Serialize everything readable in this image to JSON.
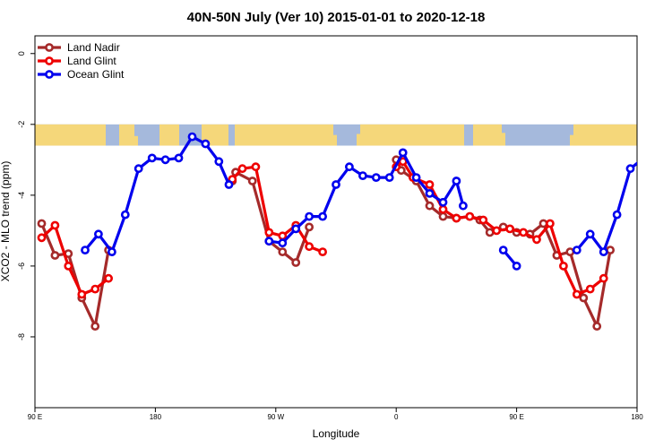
{
  "chart_data": {
    "type": "line",
    "title": "40N-50N July (Ver 10)   2015-01-01 to 2020-12-18",
    "xlabel": "Longitude",
    "ylabel": "XCO2 - MLO trend (ppm)",
    "xlim": [
      90,
      270
    ],
    "ylim": [
      0.5,
      -10
    ],
    "x_ticks": [
      {
        "value": 90,
        "label": "90 E"
      },
      {
        "value": 126,
        "label": "180"
      },
      {
        "value": 162,
        "label": "90 W"
      },
      {
        "value": 198,
        "label": "0"
      },
      {
        "value": 234,
        "label": "90 E"
      },
      {
        "value": 270,
        "label": "180"
      }
    ],
    "y_ticks": [
      {
        "value": 0,
        "label": "0"
      },
      {
        "value": -2,
        "label": "-2"
      },
      {
        "value": -4,
        "label": "-4"
      },
      {
        "value": -6,
        "label": "-6"
      },
      {
        "value": -8,
        "label": "-8"
      }
    ],
    "map_strip": {
      "y_top": -2.0,
      "y_bottom": -2.6,
      "ocean_color": "#a5b9dc",
      "land_color": "#f5d77a"
    },
    "legend_position": "top-left",
    "series": [
      {
        "name": "Land Nadir",
        "color": "#a52a2a",
        "segments": [
          [
            [
              92,
              -4.8
            ],
            [
              96,
              -5.7
            ],
            [
              100,
              -5.65
            ],
            [
              104,
              -6.9
            ],
            [
              108,
              -7.7
            ],
            [
              112,
              -5.55
            ]
          ],
          [
            [
              149,
              -3.6
            ],
            [
              150,
              -3.35
            ],
            [
              155,
              -3.6
            ],
            [
              160,
              -5.3
            ],
            [
              164,
              -5.6
            ],
            [
              168,
              -5.9
            ],
            [
              172,
              -4.9
            ]
          ],
          [
            [
              198,
              -3.0
            ],
            [
              199.5,
              -3.3
            ],
            [
              204,
              -3.6
            ],
            [
              208,
              -4.3
            ],
            [
              212,
              -4.6
            ],
            [
              216,
              -4.65
            ],
            [
              220,
              -4.6
            ],
            [
              223,
              -4.7
            ],
            [
              226,
              -5.05
            ],
            [
              230,
              -4.9
            ],
            [
              234,
              -5.05
            ],
            [
              238,
              -5.1
            ],
            [
              242,
              -4.8
            ],
            [
              246,
              -5.7
            ],
            [
              250,
              -5.6
            ],
            [
              254,
              -6.9
            ],
            [
              258,
              -7.7
            ],
            [
              262,
              -5.55
            ]
          ]
        ]
      },
      {
        "name": "Land Glint",
        "color": "#ee0000",
        "segments": [
          [
            [
              92,
              -5.2
            ],
            [
              96,
              -4.85
            ],
            [
              100,
              -6.0
            ],
            [
              104,
              -6.8
            ],
            [
              108,
              -6.65
            ],
            [
              112,
              -6.35
            ]
          ],
          [
            [
              149,
              -3.55
            ],
            [
              152,
              -3.25
            ],
            [
              156,
              -3.2
            ],
            [
              160,
              -5.05
            ],
            [
              164,
              -5.15
            ],
            [
              168,
              -4.85
            ],
            [
              172,
              -5.45
            ],
            [
              176,
              -5.6
            ]
          ],
          [
            [
              198,
              -3.2
            ],
            [
              200,
              -3.05
            ],
            [
              203,
              -3.5
            ],
            [
              208,
              -3.7
            ],
            [
              212,
              -4.4
            ],
            [
              216,
              -4.65
            ],
            [
              220,
              -4.6
            ],
            [
              224,
              -4.7
            ],
            [
              228,
              -5.0
            ],
            [
              232,
              -4.95
            ],
            [
              236,
              -5.05
            ],
            [
              240,
              -5.25
            ],
            [
              244,
              -4.8
            ],
            [
              248,
              -6.0
            ],
            [
              252,
              -6.8
            ],
            [
              256,
              -6.65
            ],
            [
              260,
              -6.35
            ]
          ]
        ]
      },
      {
        "name": "Ocean Glint",
        "color": "#0000ee",
        "segments": [
          [
            [
              105,
              -5.55
            ],
            [
              109,
              -5.1
            ],
            [
              113,
              -5.6
            ],
            [
              117,
              -4.55
            ],
            [
              121,
              -3.25
            ],
            [
              125,
              -2.95
            ],
            [
              129,
              -3.0
            ],
            [
              133,
              -2.95
            ],
            [
              137,
              -2.35
            ],
            [
              141,
              -2.55
            ],
            [
              145,
              -3.05
            ],
            [
              148,
              -3.7
            ]
          ],
          [
            [
              160,
              -5.3
            ],
            [
              164,
              -5.35
            ],
            [
              168,
              -4.95
            ],
            [
              172,
              -4.6
            ],
            [
              176,
              -4.6
            ],
            [
              180,
              -3.7
            ],
            [
              184,
              -3.2
            ],
            [
              188,
              -3.45
            ],
            [
              192,
              -3.5
            ],
            [
              196,
              -3.5
            ],
            [
              200,
              -2.8
            ],
            [
              204,
              -3.5
            ],
            [
              208,
              -3.95
            ],
            [
              212,
              -4.2
            ],
            [
              216,
              -3.6
            ],
            [
              218,
              -4.3
            ]
          ],
          [
            [
              230,
              -5.55
            ],
            [
              234,
              -6.0
            ]
          ],
          [
            [
              252,
              -5.55
            ],
            [
              256,
              -5.1
            ],
            [
              260,
              -5.6
            ],
            [
              264,
              -4.55
            ],
            [
              268,
              -3.25
            ],
            [
              272,
              -2.95
            ]
          ]
        ]
      }
    ]
  }
}
